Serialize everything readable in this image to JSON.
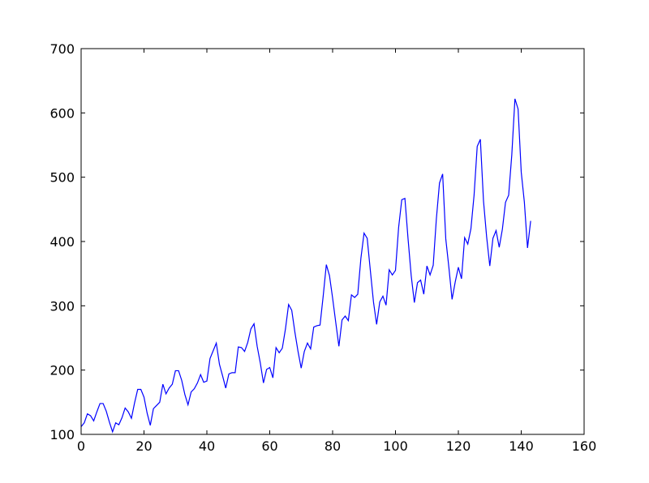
{
  "chart_data": {
    "type": "line",
    "x": [
      0,
      1,
      2,
      3,
      4,
      5,
      6,
      7,
      8,
      9,
      10,
      11,
      12,
      13,
      14,
      15,
      16,
      17,
      18,
      19,
      20,
      21,
      22,
      23,
      24,
      25,
      26,
      27,
      28,
      29,
      30,
      31,
      32,
      33,
      34,
      35,
      36,
      37,
      38,
      39,
      40,
      41,
      42,
      43,
      44,
      45,
      46,
      47,
      48,
      49,
      50,
      51,
      52,
      53,
      54,
      55,
      56,
      57,
      58,
      59,
      60,
      61,
      62,
      63,
      64,
      65,
      66,
      67,
      68,
      69,
      70,
      71,
      72,
      73,
      74,
      75,
      76,
      77,
      78,
      79,
      80,
      81,
      82,
      83,
      84,
      85,
      86,
      87,
      88,
      89,
      90,
      91,
      92,
      93,
      94,
      95,
      96,
      97,
      98,
      99,
      100,
      101,
      102,
      103,
      104,
      105,
      106,
      107,
      108,
      109,
      110,
      111,
      112,
      113,
      114,
      115,
      116,
      117,
      118,
      119,
      120,
      121,
      122,
      123,
      124,
      125,
      126,
      127,
      128,
      129,
      130,
      131,
      132,
      133,
      134,
      135,
      136,
      137,
      138,
      139,
      140,
      141,
      142,
      143
    ],
    "series": [
      {
        "color": "#0000ff",
        "values": [
          112,
          118,
          132,
          129,
          121,
          135,
          148,
          148,
          136,
          119,
          104,
          118,
          115,
          126,
          141,
          135,
          125,
          149,
          170,
          170,
          158,
          133,
          114,
          140,
          145,
          150,
          178,
          163,
          172,
          178,
          199,
          199,
          184,
          162,
          146,
          166,
          171,
          180,
          193,
          181,
          183,
          218,
          230,
          242,
          209,
          191,
          172,
          194,
          196,
          196,
          236,
          235,
          229,
          243,
          264,
          272,
          237,
          211,
          180,
          201,
          204,
          188,
          235,
          227,
          234,
          264,
          302,
          293,
          259,
          229,
          203,
          229,
          242,
          233,
          267,
          269,
          270,
          315,
          364,
          347,
          312,
          274,
          237,
          278,
          284,
          277,
          317,
          313,
          318,
          374,
          413,
          405,
          355,
          306,
          271,
          306,
          315,
          301,
          356,
          348,
          355,
          422,
          465,
          467,
          404,
          347,
          305,
          336,
          340,
          318,
          362,
          348,
          363,
          435,
          491,
          505,
          404,
          359,
          310,
          337,
          360,
          342,
          406,
          396,
          420,
          472,
          548,
          559,
          463,
          407,
          362,
          405,
          417,
          391,
          419,
          461,
          472,
          535,
          622,
          606,
          508,
          461,
          390,
          432
        ]
      }
    ],
    "xlim": [
      0,
      160
    ],
    "xticks": [
      0,
      20,
      40,
      60,
      80,
      100,
      120,
      140,
      160
    ],
    "ylim": [
      100,
      700
    ],
    "yticks": [
      100,
      200,
      300,
      400,
      500,
      600,
      700
    ]
  }
}
